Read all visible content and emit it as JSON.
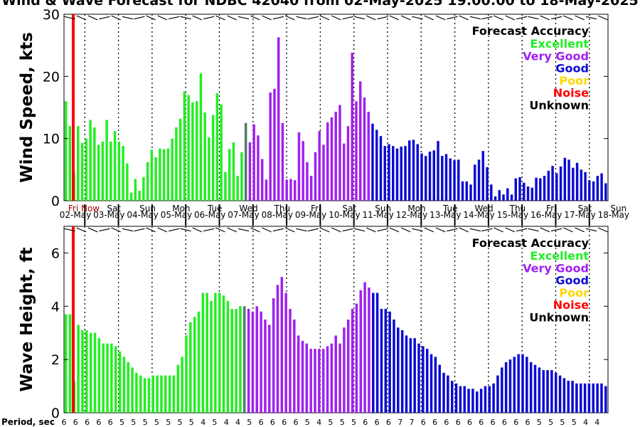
{
  "title": "Wind & Wave Forecast for NDBC 42040 from 02-May-2025 19:00:00 to 18-May-2025",
  "legend": {
    "heading": "Forecast Accuracy",
    "items": [
      {
        "label": "Excellent",
        "color": "#22ee22"
      },
      {
        "label": "Very Good",
        "color": "#a020f0"
      },
      {
        "label": "Good",
        "color": "#0a0ad2"
      },
      {
        "label": "Poor",
        "color": "#ffd700"
      },
      {
        "label": "Noise",
        "color": "#ff0000"
      },
      {
        "label": "Unknown",
        "color": "#000000"
      }
    ]
  },
  "marker": {
    "label": "Fri Now",
    "color": "#ff0000"
  },
  "colors": {
    "excellent": "#22ee22",
    "transition": "#4f7a6a",
    "very_good": "#a020f0",
    "good": "#0a0ad2"
  },
  "days": [
    {
      "name": "Fri",
      "date": "02-May"
    },
    {
      "name": "Sat",
      "date": "03-May"
    },
    {
      "name": "Sun",
      "date": "04-May"
    },
    {
      "name": "Mon",
      "date": "05-May"
    },
    {
      "name": "Tue",
      "date": "06-May"
    },
    {
      "name": "Wed",
      "date": "07-May"
    },
    {
      "name": "Thu",
      "date": "08-May"
    },
    {
      "name": "Fri",
      "date": "09-May"
    },
    {
      "name": "Sat",
      "date": "10-May"
    },
    {
      "name": "Sun",
      "date": "11-May"
    },
    {
      "name": "Mon",
      "date": "12-May"
    },
    {
      "name": "Tue",
      "date": "13-May"
    },
    {
      "name": "Wed",
      "date": "14-May"
    },
    {
      "name": "Thu",
      "date": "15-May"
    },
    {
      "name": "Fri",
      "date": "16-May"
    },
    {
      "name": "Sat",
      "date": "17-May"
    },
    {
      "name": "Sun",
      "date": "18-May"
    }
  ],
  "period_label": "Period, sec",
  "chart_data": [
    {
      "type": "bar",
      "ylabel": "Wind Speed, kts",
      "ylim": [
        0,
        30
      ],
      "yticks": [
        0,
        10,
        20,
        30
      ],
      "values": [
        16,
        12,
        4.5,
        12,
        9.3,
        10,
        13,
        11.8,
        9,
        9.5,
        13,
        9.5,
        11.2,
        9.5,
        8.8,
        6,
        1.3,
        3.5,
        1.6,
        3.8,
        6.2,
        8.2,
        7,
        8.4,
        8.3,
        8.4,
        10,
        11.8,
        13.2,
        17.6,
        17,
        15.8,
        16,
        20.5,
        14.2,
        10.2,
        13.8,
        17.3,
        15.5,
        4.6,
        8.3,
        9.4,
        4,
        7.8,
        12.5,
        9.4,
        12.3,
        10.5,
        6.7,
        3.4,
        17.4,
        18,
        26.3,
        12.5,
        3.4,
        3.5,
        3.3,
        11,
        9.6,
        6.2,
        4,
        7.8,
        11.2,
        9,
        12.6,
        13.4,
        14.3,
        15.4,
        9.2,
        12,
        23.8,
        16,
        19.2,
        16.6,
        14.3,
        12.4,
        11.4,
        10.4,
        8.8,
        9.1,
        8.8,
        8.4,
        8.7,
        8.8,
        9.7,
        9.8,
        9.1,
        7.6,
        7.2,
        7.9,
        8.1,
        9.6,
        7.2,
        7.5,
        6.8,
        6.5,
        6.6,
        3.1,
        3.1,
        2.6,
        5.8,
        6.6,
        8,
        5.4,
        2.6,
        0.7,
        1.7,
        1,
        2,
        1,
        3.6,
        3.8,
        2.9,
        2.3,
        2.1,
        3.7,
        3.6,
        4,
        4.8,
        5.6,
        4.4,
        5.5,
        6.9,
        6.6,
        5.3,
        6.1,
        5,
        4.6,
        3.3,
        3.1,
        4,
        4.4,
        2.8
      ]
    },
    {
      "type": "bar",
      "ylabel": "Wave Height, ft",
      "ylim": [
        0,
        7
      ],
      "yticks": [
        0,
        2,
        4,
        6
      ],
      "values": [
        3.7,
        3.7,
        1.2,
        3.3,
        3.1,
        3.1,
        3,
        3,
        2.8,
        2.6,
        2.6,
        2.6,
        2.5,
        2.3,
        2.1,
        1.9,
        1.7,
        1.5,
        1.4,
        1.3,
        1.3,
        1.4,
        1.4,
        1.4,
        1.4,
        1.4,
        1.4,
        1.8,
        2.1,
        2.9,
        3.4,
        3.6,
        3.8,
        4.5,
        4.5,
        4.2,
        4.5,
        4.5,
        4.4,
        4.2,
        3.9,
        3.9,
        4,
        4,
        3.9,
        3.8,
        4,
        3.8,
        3.5,
        3.3,
        4.3,
        4.8,
        5.1,
        4.5,
        3.9,
        3.5,
        2.9,
        2.7,
        2.6,
        2.4,
        2.4,
        2.4,
        2.4,
        2.5,
        2.6,
        2.9,
        2.6,
        3.2,
        3.5,
        3.9,
        4.1,
        4.6,
        4.9,
        4.7,
        4.5,
        4.5,
        3.9,
        3.9,
        3.8,
        3.5,
        3.2,
        3.1,
        2.9,
        2.8,
        2.8,
        2.6,
        2.5,
        2.4,
        2.2,
        2.1,
        1.8,
        1.5,
        1.4,
        1.2,
        1.1,
        1,
        1,
        0.9,
        0.9,
        0.8,
        0.9,
        1,
        1,
        1.1,
        1.4,
        1.7,
        1.9,
        2,
        2.1,
        2.2,
        2.2,
        2.1,
        1.9,
        1.8,
        1.7,
        1.6,
        1.6,
        1.6,
        1.5,
        1.4,
        1.3,
        1.2,
        1.2,
        1.1,
        1.1,
        1.1,
        1.1,
        1.1,
        1.1,
        1.1,
        1
      ]
    }
  ],
  "periods": [
    6,
    6,
    6,
    6,
    6,
    5,
    5,
    5,
    5,
    5,
    5,
    5,
    4,
    5,
    4,
    4,
    5,
    6,
    6,
    6,
    6,
    5,
    4,
    5,
    5,
    5,
    6,
    6,
    6,
    7,
    7,
    6,
    6,
    6,
    6,
    6,
    6,
    6,
    6,
    6,
    6,
    5,
    5,
    5,
    5,
    4,
    4
  ]
}
